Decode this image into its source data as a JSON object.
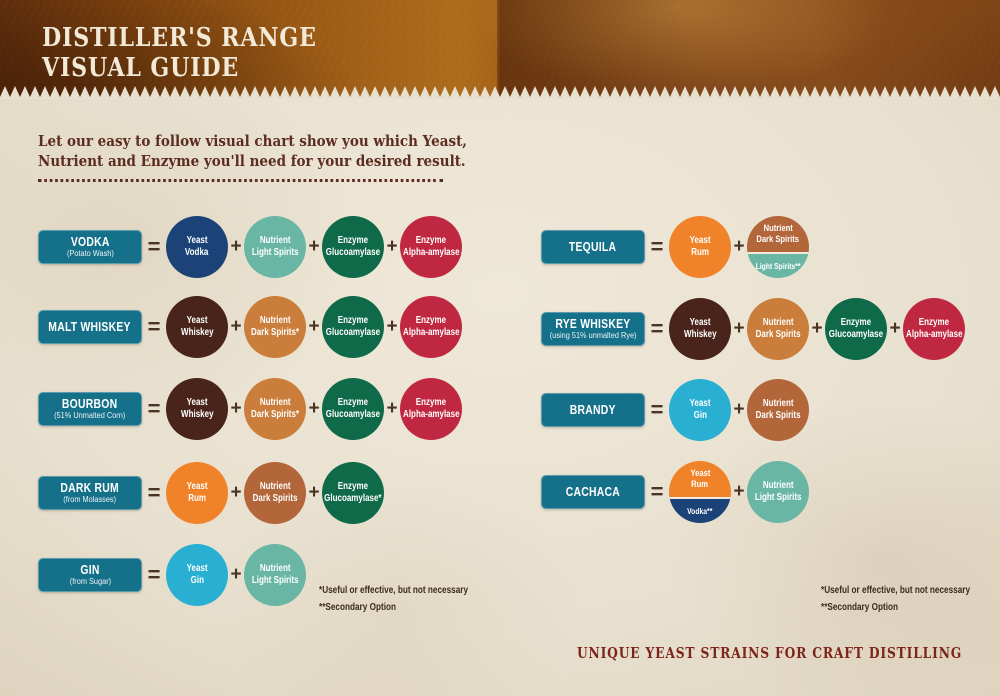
{
  "header": {
    "title_line1": "DISTILLER'S RANGE",
    "title_line2": "VISUAL GUIDE"
  },
  "intro": {
    "line1": "Let our easy to follow visual chart show you which Yeast,",
    "line2": "Nutrient and Enzyme you'll need for your desired result."
  },
  "symbols": {
    "equals": "=",
    "plus": "+"
  },
  "colors": {
    "box_teal": "#15708a",
    "navy": "#1c4377",
    "light_teal": "#69b6a5",
    "green": "#0f6a49",
    "crimson": "#c02841",
    "brown": "#49241a",
    "tan": "#cb7d3b",
    "orange": "#f0832a",
    "rust": "#b2663a",
    "cyan": "#29afd1"
  },
  "rows_left": [
    {
      "name": "VODKA",
      "subtitle": "(Potato Wash)",
      "items": [
        {
          "color": "navy",
          "lines": [
            "Yeast",
            "Vodka"
          ]
        },
        {
          "color": "light_teal",
          "lines": [
            "Nutrient",
            "Light Spirits"
          ]
        },
        {
          "color": "green",
          "lines": [
            "Enzyme",
            "Glucoamylase"
          ]
        },
        {
          "color": "crimson",
          "lines": [
            "Enzyme",
            "Alpha-amylase"
          ]
        }
      ]
    },
    {
      "name": "MALT WHISKEY",
      "subtitle": "",
      "items": [
        {
          "color": "brown",
          "lines": [
            "Yeast",
            "Whiskey"
          ]
        },
        {
          "color": "tan",
          "lines": [
            "Nutrient",
            "Dark Spirits*"
          ]
        },
        {
          "color": "green",
          "lines": [
            "Enzyme",
            "Glucoamylase"
          ]
        },
        {
          "color": "crimson",
          "lines": [
            "Enzyme",
            "Alpha-amylase"
          ]
        }
      ]
    },
    {
      "name": "BOURBON",
      "subtitle": "(51% Unmalted Corn)",
      "items": [
        {
          "color": "brown",
          "lines": [
            "Yeast",
            "Whiskey"
          ]
        },
        {
          "color": "tan",
          "lines": [
            "Nutrient",
            "Dark Spirits*"
          ]
        },
        {
          "color": "green",
          "lines": [
            "Enzyme",
            "Glucoamylase"
          ]
        },
        {
          "color": "crimson",
          "lines": [
            "Enzyme",
            "Alpha-amylase"
          ]
        }
      ]
    },
    {
      "name": "DARK RUM",
      "subtitle": "(from Molasses)",
      "items": [
        {
          "color": "orange",
          "lines": [
            "Yeast",
            "Rum"
          ]
        },
        {
          "color": "rust",
          "lines": [
            "Nutrient",
            "Dark Spirits"
          ]
        },
        {
          "color": "green",
          "lines": [
            "Enzyme",
            "Glucoamylase*"
          ]
        }
      ]
    },
    {
      "name": "GIN",
      "subtitle": "(from Sugar)",
      "items": [
        {
          "color": "cyan",
          "lines": [
            "Yeast",
            "Gin"
          ]
        },
        {
          "color": "light_teal",
          "lines": [
            "Nutrient",
            "Light Spirits"
          ]
        }
      ]
    }
  ],
  "rows_right": [
    {
      "name": "TEQUILA",
      "subtitle": "",
      "items": [
        {
          "color": "orange",
          "lines": [
            "Yeast",
            "Rum"
          ]
        },
        {
          "split": true,
          "top": {
            "color": "rust",
            "lines": [
              "Nutrient",
              "Dark Spirits"
            ]
          },
          "bottom": {
            "color": "light_teal",
            "lines": [
              "Light Spirits**"
            ]
          }
        }
      ]
    },
    {
      "name": "RYE WHISKEY",
      "subtitle": "(using 51% unmalted Rye)",
      "items": [
        {
          "color": "brown",
          "lines": [
            "Yeast",
            "Whiskey"
          ]
        },
        {
          "color": "tan",
          "lines": [
            "Nutrient",
            "Dark Spirits"
          ]
        },
        {
          "color": "green",
          "lines": [
            "Enzyme",
            "Glucoamylase"
          ]
        },
        {
          "color": "crimson",
          "lines": [
            "Enzyme",
            "Alpha-amylase"
          ]
        }
      ]
    },
    {
      "name": "BRANDY",
      "subtitle": "",
      "items": [
        {
          "color": "cyan",
          "lines": [
            "Yeast",
            "Gin"
          ]
        },
        {
          "color": "rust",
          "lines": [
            "Nutrient",
            "Dark Spirits"
          ]
        }
      ]
    },
    {
      "name": "CACHACA",
      "subtitle": "",
      "items": [
        {
          "split": true,
          "top": {
            "color": "orange",
            "lines": [
              "Yeast",
              "Rum"
            ]
          },
          "bottom": {
            "color": "navy",
            "lines": [
              "Vodka**"
            ]
          }
        },
        {
          "color": "light_teal",
          "lines": [
            "Nutrient",
            "Light Spirits"
          ]
        }
      ]
    }
  ],
  "footnotes": {
    "line1": "*Useful or effective, but not necessary",
    "line2": "**Secondary Option"
  },
  "footer": {
    "tagline": "UNIQUE YEAST STRAINS FOR CRAFT DISTILLING"
  }
}
